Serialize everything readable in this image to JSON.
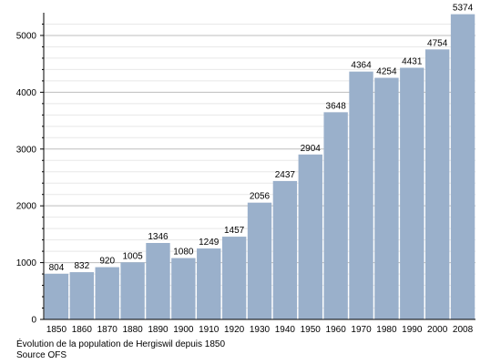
{
  "chart_data": {
    "type": "bar",
    "categories": [
      "1850",
      "1860",
      "1870",
      "1880",
      "1890",
      "1900",
      "1910",
      "1920",
      "1930",
      "1940",
      "1950",
      "1960",
      "1970",
      "1980",
      "1990",
      "2000",
      "2008"
    ],
    "values": [
      804,
      832,
      920,
      1005,
      1346,
      1080,
      1249,
      1457,
      2056,
      2437,
      2904,
      3648,
      4364,
      4254,
      4431,
      4754,
      5374
    ],
    "title": "",
    "xlabel": "",
    "ylabel": "",
    "ylim": [
      0,
      5400
    ],
    "yticks": [
      0,
      1000,
      2000,
      3000,
      4000,
      5000
    ],
    "grid": true,
    "data_labels": true,
    "bar_color": "#9ab0cb"
  },
  "caption": {
    "line1": "Évolution de la population de Hergiswil depuis 1850",
    "line2": "Source OFS"
  }
}
